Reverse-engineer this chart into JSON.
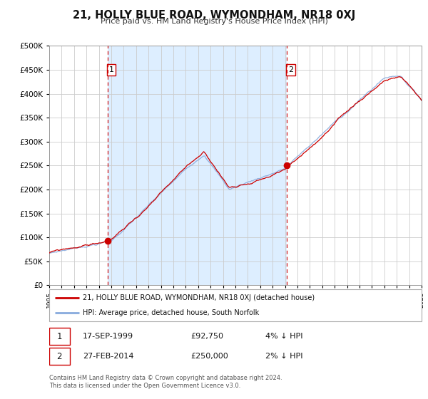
{
  "title": "21, HOLLY BLUE ROAD, WYMONDHAM, NR18 0XJ",
  "subtitle": "Price paid vs. HM Land Registry's House Price Index (HPI)",
  "legend_line1": "21, HOLLY BLUE ROAD, WYMONDHAM, NR18 0XJ (detached house)",
  "legend_line2": "HPI: Average price, detached house, South Norfolk",
  "transaction1_date": "17-SEP-1999",
  "transaction1_price": "£92,750",
  "transaction1_hpi": "4% ↓ HPI",
  "transaction2_date": "27-FEB-2014",
  "transaction2_price": "£250,000",
  "transaction2_hpi": "2% ↓ HPI",
  "footer": "Contains HM Land Registry data © Crown copyright and database right 2024.\nThis data is licensed under the Open Government Licence v3.0.",
  "price_color": "#cc0000",
  "hpi_color": "#88aadd",
  "background_color": "#ddeeff",
  "grid_color": "#cccccc",
  "vline_color": "#cc0000",
  "marker_color": "#cc0000",
  "ylim": [
    0,
    500000
  ],
  "yticks": [
    0,
    50000,
    100000,
    150000,
    200000,
    250000,
    300000,
    350000,
    400000,
    450000,
    500000
  ],
  "year_start": 1995,
  "year_end": 2025,
  "transaction1_year": 1999.71,
  "transaction2_year": 2014.16,
  "transaction1_price_val": 92750,
  "transaction2_price_val": 250000,
  "label1_price": 450000,
  "label2_price": 450000
}
